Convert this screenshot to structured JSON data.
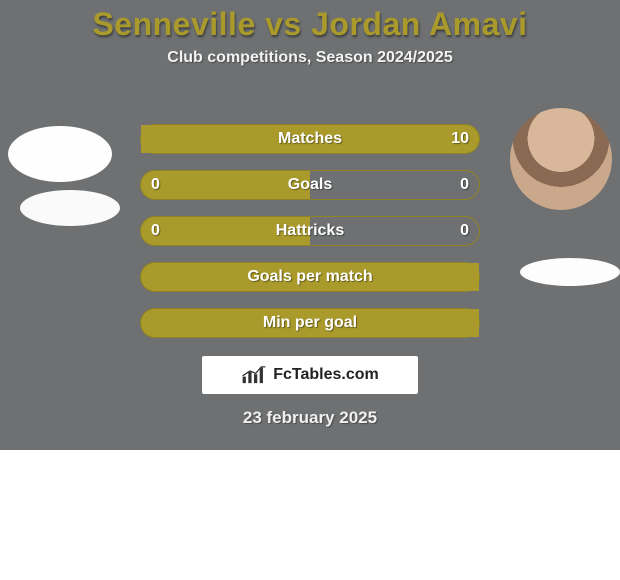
{
  "background_color": "#6e7071",
  "accent_color": "#a99a2b",
  "title": {
    "text": "Senneville vs Jordan Amavi",
    "color": "#a99a2b",
    "fontsize": 32
  },
  "subtitle": {
    "text": "Club competitions, Season 2024/2025",
    "fontsize": 16
  },
  "stats": {
    "label_fontsize": 16,
    "value_fontsize": 16,
    "bar_bg": "#a99a2b",
    "alt_bg": "#6e7071",
    "rows": [
      {
        "label": "Matches",
        "left": "",
        "right": "10",
        "left_pct": 0,
        "right_pct": 100,
        "left_color": "#a99a2b",
        "right_color": "#a99a2b"
      },
      {
        "label": "Goals",
        "left": "0",
        "right": "0",
        "left_pct": 50,
        "right_pct": 50,
        "left_color": "#a99a2b",
        "right_color": "#6e7071"
      },
      {
        "label": "Hattricks",
        "left": "0",
        "right": "0",
        "left_pct": 50,
        "right_pct": 50,
        "left_color": "#a99a2b",
        "right_color": "#6e7071"
      },
      {
        "label": "Goals per match",
        "left": "",
        "right": "",
        "left_pct": 100,
        "right_pct": 0,
        "left_color": "#a99a2b",
        "right_color": "#a99a2b"
      },
      {
        "label": "Min per goal",
        "left": "",
        "right": "",
        "left_pct": 100,
        "right_pct": 0,
        "left_color": "#a99a2b",
        "right_color": "#a99a2b"
      }
    ]
  },
  "brand": {
    "text": "FcTables.com"
  },
  "date": {
    "text": "23 february 2025",
    "fontsize": 17
  },
  "players": {
    "left_name": "Senneville",
    "right_name": "Jordan Amavi"
  }
}
